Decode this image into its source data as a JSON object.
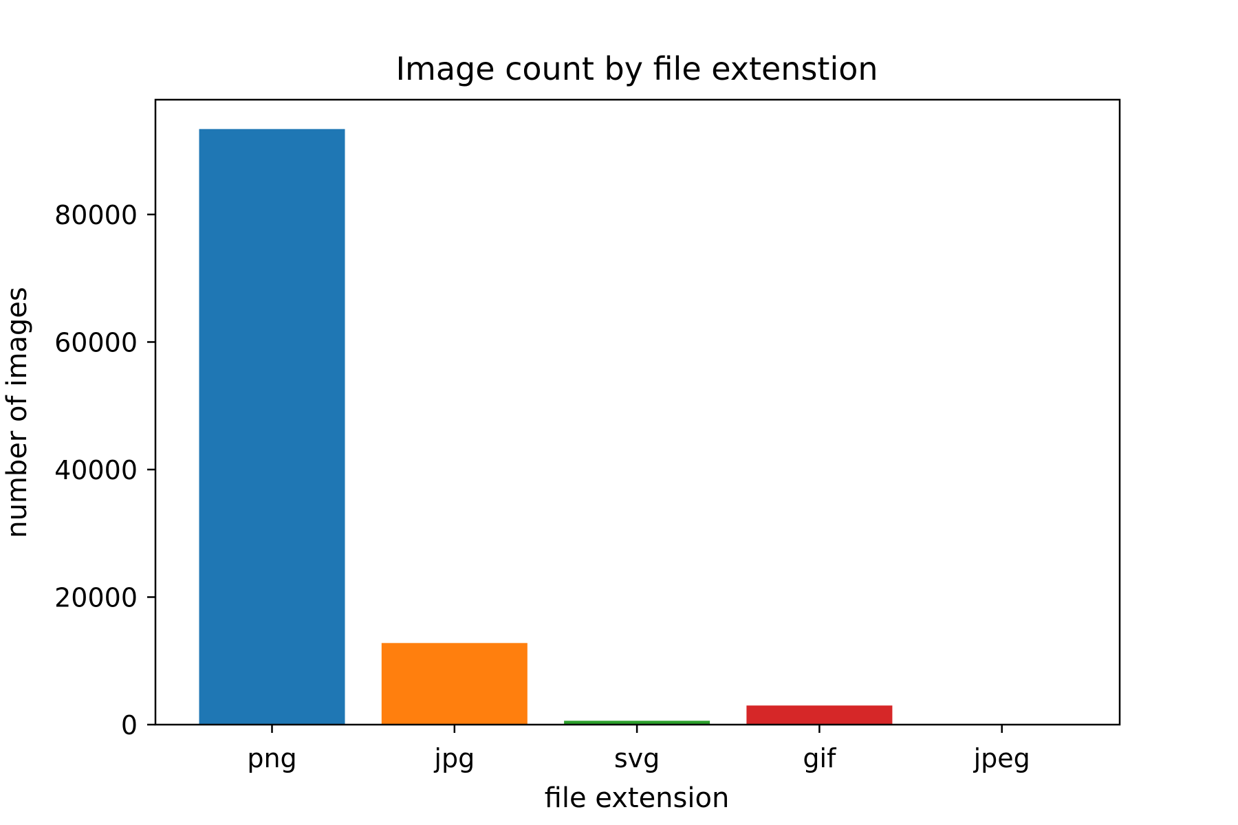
{
  "chart_data": {
    "type": "bar",
    "title": "Image count by file extenstion",
    "xlabel": "file extension",
    "ylabel": "number of images",
    "categories": [
      "png",
      "jpg",
      "svg",
      "gif",
      "jpeg"
    ],
    "values": [
      93400,
      12800,
      600,
      3000,
      30
    ],
    "colors": [
      "#1f77b4",
      "#ff7f0e",
      "#2ca02c",
      "#d62728",
      "#9467bd"
    ],
    "ylim": [
      0,
      98000
    ],
    "yticks": [
      0,
      20000,
      40000,
      60000,
      80000
    ],
    "ytick_labels": [
      "0",
      "20000",
      "40000",
      "60000",
      "80000"
    ],
    "grid": false,
    "legend": "none"
  }
}
